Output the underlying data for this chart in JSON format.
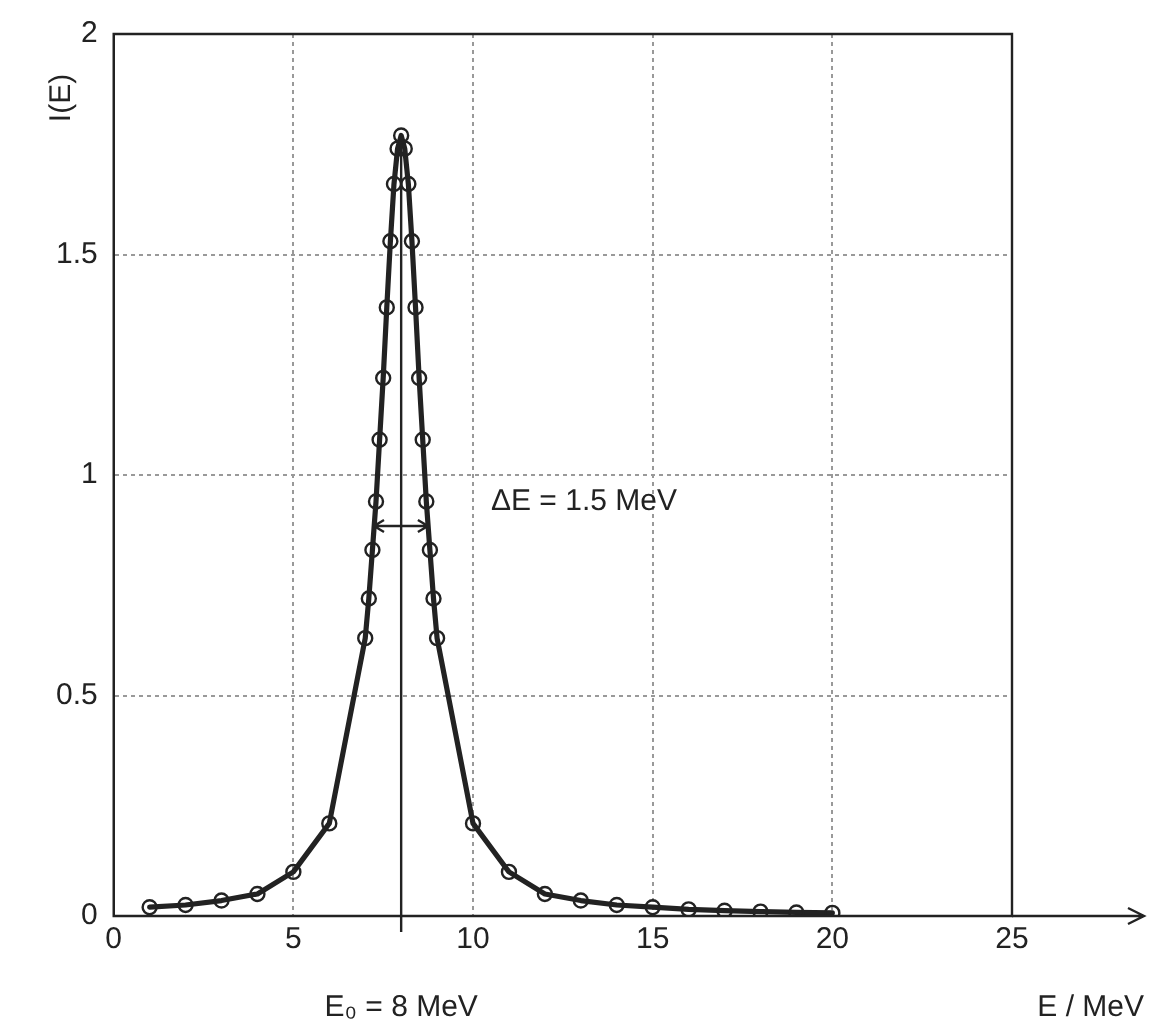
{
  "chart_data": {
    "type": "line",
    "xlabel": "E / MeV",
    "ylabel": "I(E)",
    "x": [
      1,
      2,
      3,
      4,
      5,
      6,
      7,
      7.1,
      7.2,
      7.3,
      7.4,
      7.5,
      7.6,
      7.7,
      7.8,
      7.9,
      8,
      8.1,
      8.2,
      8.3,
      8.4,
      8.5,
      8.6,
      8.7,
      8.8,
      8.9,
      9,
      10,
      11,
      12,
      13,
      14,
      15,
      16,
      17,
      18,
      19,
      20
    ],
    "series": [
      {
        "color": "#222222",
        "values": [
          0.02,
          0.025,
          0.035,
          0.05,
          0.1,
          0.21,
          0.63,
          0.72,
          0.83,
          0.94,
          1.08,
          1.22,
          1.38,
          1.53,
          1.66,
          1.74,
          1.77,
          1.74,
          1.66,
          1.53,
          1.38,
          1.22,
          1.08,
          0.94,
          0.83,
          0.72,
          0.63,
          0.21,
          0.1,
          0.05,
          0.035,
          0.025,
          0.02,
          0.015,
          0.012,
          0.01,
          0.008,
          0.007
        ]
      }
    ],
    "xlim": [
      0,
      25
    ],
    "xticks": [
      0,
      5,
      10,
      15,
      20,
      25
    ],
    "ylim": [
      0,
      2
    ],
    "yticks": [
      0,
      0.5,
      1,
      1.5,
      2
    ],
    "grid": true,
    "legend": false,
    "marker": "circle",
    "line_style": "solid",
    "ref_lines": [
      {
        "axis": "x",
        "value": 8,
        "label": "E₀ = 8 MeV"
      }
    ],
    "annotations": [
      "ΔE = 1.5 MeV"
    ]
  }
}
